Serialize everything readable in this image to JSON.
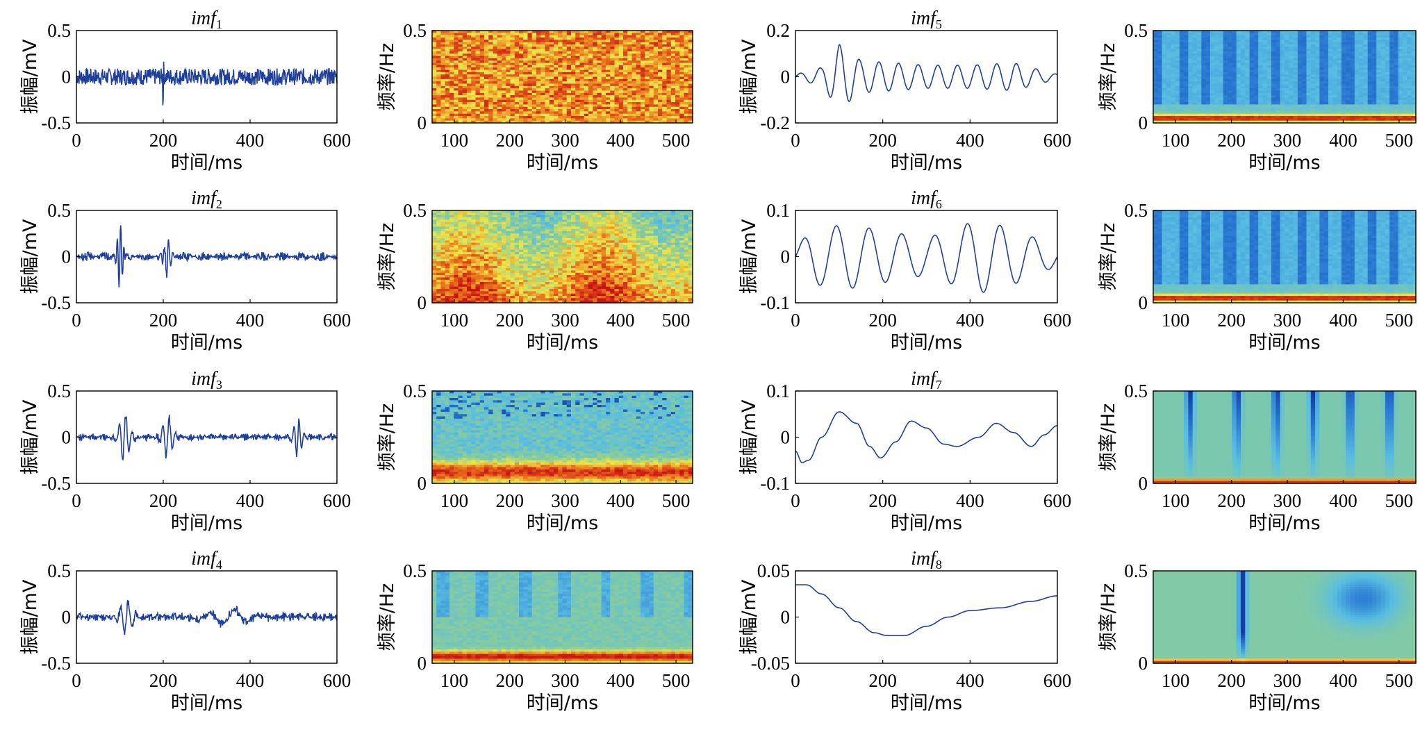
{
  "chart_data": {
    "type": "panel-grid",
    "rows": [
      {
        "imf": {
          "title_main": "imf",
          "title_sub": "1",
          "type": "line",
          "xlabel": "时间/ms",
          "ylabel": "振幅/mV",
          "xlim": [
            0,
            600
          ],
          "ylim": [
            -0.5,
            0.5
          ],
          "xticks": [
            "0",
            "200",
            "400",
            "600"
          ],
          "yticks": [
            "0.5",
            "0",
            "-0.5"
          ],
          "signal": {
            "kind": "noise",
            "amp": 0.09,
            "spike_x": 200,
            "spike_amp": 0.25
          }
        },
        "spec": {
          "type": "heatmap",
          "xlabel": "时间/ms",
          "ylabel": "频率/Hz",
          "xlim": [
            60,
            530
          ],
          "ylim": [
            0,
            0.5
          ],
          "xticks": [
            "100",
            "200",
            "300",
            "400",
            "500"
          ],
          "yticks": [
            "0.5",
            "0"
          ],
          "pattern": "broadband"
        }
      },
      {
        "imf": {
          "title_main": "imf",
          "title_sub": "2",
          "type": "line",
          "xlabel": "时间/ms",
          "ylabel": "振幅/mV",
          "xlim": [
            0,
            600
          ],
          "ylim": [
            -0.5,
            0.5
          ],
          "xticks": [
            "0",
            "200",
            "400",
            "600"
          ],
          "yticks": [
            "0.5",
            "0",
            "-0.5"
          ],
          "signal": {
            "kind": "bursts",
            "amp": 0.05,
            "freq": 45,
            "bursts": [
              {
                "x": 100,
                "amp": 0.35,
                "w": 8
              },
              {
                "x": 210,
                "amp": 0.2,
                "w": 10
              }
            ]
          }
        },
        "spec": {
          "type": "heatmap",
          "xlabel": "时间/ms",
          "ylabel": "频率/Hz",
          "xlim": [
            60,
            530
          ],
          "ylim": [
            0,
            0.5
          ],
          "xticks": [
            "100",
            "200",
            "300",
            "400",
            "500"
          ],
          "yticks": [
            "0.5",
            "0"
          ],
          "pattern": "lowmid"
        }
      },
      {
        "imf": {
          "title_main": "imf",
          "title_sub": "3",
          "type": "line",
          "xlabel": "时间/ms",
          "ylabel": "振幅/mV",
          "xlim": [
            0,
            600
          ],
          "ylim": [
            -0.5,
            0.5
          ],
          "xticks": [
            "0",
            "200",
            "400",
            "600"
          ],
          "yticks": [
            "0.5",
            "0",
            "-0.5"
          ],
          "signal": {
            "kind": "bursts",
            "amp": 0.04,
            "freq": 25,
            "bursts": [
              {
                "x": 110,
                "amp": 0.25,
                "w": 15
              },
              {
                "x": 210,
                "amp": 0.22,
                "w": 15
              },
              {
                "x": 510,
                "amp": 0.2,
                "w": 12
              }
            ]
          }
        },
        "spec": {
          "type": "heatmap",
          "xlabel": "时间/ms",
          "ylabel": "频率/Hz",
          "xlim": [
            60,
            530
          ],
          "ylim": [
            0,
            0.5
          ],
          "xticks": [
            "100",
            "200",
            "300",
            "400",
            "500"
          ],
          "yticks": [
            "0.5",
            "0"
          ],
          "pattern": "lowband"
        }
      },
      {
        "imf": {
          "title_main": "imf",
          "title_sub": "4",
          "type": "line",
          "xlabel": "时间/ms",
          "ylabel": "振幅/mV",
          "xlim": [
            0,
            600
          ],
          "ylim": [
            -0.5,
            0.5
          ],
          "xticks": [
            "0",
            "200",
            "400",
            "600"
          ],
          "yticks": [
            "0.5",
            "0",
            "-0.5"
          ],
          "signal": {
            "kind": "bursts",
            "amp": 0.05,
            "freq": 18,
            "bursts": [
              {
                "x": 115,
                "amp": 0.18,
                "w": 18
              },
              {
                "x": 350,
                "amp": 0.08,
                "w": 60
              }
            ]
          }
        },
        "spec": {
          "type": "heatmap",
          "xlabel": "时间/ms",
          "ylabel": "频率/Hz",
          "xlim": [
            60,
            530
          ],
          "ylim": [
            0,
            0.5
          ],
          "xticks": [
            "100",
            "200",
            "300",
            "400",
            "500"
          ],
          "yticks": [
            "0.5",
            "0"
          ],
          "pattern": "verybasal"
        }
      }
    ],
    "rows_right": [
      {
        "imf": {
          "title_main": "imf",
          "title_sub": "5",
          "type": "line",
          "xlabel": "时间/ms",
          "ylabel": "振幅/mV",
          "xlim": [
            0,
            600
          ],
          "ylim": [
            -0.2,
            0.2
          ],
          "xticks": [
            "0",
            "200",
            "400",
            "600"
          ],
          "yticks": [
            "0.2",
            "0",
            "-0.2"
          ],
          "signal": {
            "kind": "osc",
            "period": 45,
            "env": [
              [
                0,
                0.01
              ],
              [
                60,
                0.04
              ],
              [
                100,
                0.14
              ],
              [
                150,
                0.07
              ],
              [
                300,
                0.05
              ],
              [
                400,
                0.05
              ],
              [
                500,
                0.06
              ],
              [
                600,
                0.01
              ]
            ]
          }
        },
        "spec": {
          "type": "heatmap",
          "xlabel": "时间/ms",
          "ylabel": "频率/Hz",
          "xlim": [
            60,
            530
          ],
          "ylim": [
            0,
            0.5
          ],
          "xticks": [
            "100",
            "200",
            "300",
            "400",
            "500"
          ],
          "yticks": [
            "0.5",
            "0"
          ],
          "pattern": "basal"
        }
      },
      {
        "imf": {
          "title_main": "imf",
          "title_sub": "6",
          "type": "line",
          "xlabel": "时间/ms",
          "ylabel": "振幅/mV",
          "xlim": [
            0,
            600
          ],
          "ylim": [
            -0.1,
            0.1
          ],
          "xticks": [
            "0",
            "200",
            "400",
            "600"
          ],
          "yticks": [
            "0.1",
            "0",
            "-0.1"
          ],
          "signal": {
            "kind": "osc",
            "period": 75,
            "env": [
              [
                0,
                0.02
              ],
              [
                40,
                0.06
              ],
              [
                120,
                0.07
              ],
              [
                300,
                0.04
              ],
              [
                420,
                0.08
              ],
              [
                500,
                0.06
              ],
              [
                600,
                0.02
              ]
            ]
          }
        },
        "spec": {
          "type": "heatmap",
          "xlabel": "时间/ms",
          "ylabel": "频率/Hz",
          "xlim": [
            60,
            530
          ],
          "ylim": [
            0,
            0.5
          ],
          "xticks": [
            "100",
            "200",
            "300",
            "400",
            "500"
          ],
          "yticks": [
            "0.5",
            "0"
          ],
          "pattern": "basal"
        }
      },
      {
        "imf": {
          "title_main": "imf",
          "title_sub": "7",
          "type": "line",
          "xlabel": "时间/ms",
          "ylabel": "振幅/mV",
          "xlim": [
            0,
            600
          ],
          "ylim": [
            -0.1,
            0.1
          ],
          "xticks": [
            "0",
            "200",
            "400",
            "600"
          ],
          "yticks": [
            "0.1",
            "0",
            "-0.1"
          ],
          "signal": {
            "kind": "points",
            "pts": [
              [
                0,
                -0.03
              ],
              [
                15,
                -0.055
              ],
              [
                30,
                -0.05
              ],
              [
                60,
                0.0
              ],
              [
                100,
                0.055
              ],
              [
                140,
                0.03
              ],
              [
                170,
                -0.02
              ],
              [
                195,
                -0.045
              ],
              [
                230,
                -0.01
              ],
              [
                265,
                0.035
              ],
              [
                300,
                0.02
              ],
              [
                340,
                -0.015
              ],
              [
                370,
                -0.02
              ],
              [
                420,
                0.0
              ],
              [
                460,
                0.03
              ],
              [
                500,
                0.01
              ],
              [
                540,
                -0.02
              ],
              [
                570,
                0.005
              ],
              [
                600,
                0.025
              ]
            ]
          }
        },
        "spec": {
          "type": "heatmap",
          "xlabel": "时间/ms",
          "ylabel": "频率/Hz",
          "xlim": [
            60,
            530
          ],
          "ylim": [
            0,
            0.5
          ],
          "xticks": [
            "100",
            "200",
            "300",
            "400",
            "500"
          ],
          "yticks": [
            "0.5",
            "0"
          ],
          "pattern": "sparse"
        }
      },
      {
        "imf": {
          "title_main": "imf",
          "title_sub": "8",
          "type": "line",
          "xlabel": "时间/ms",
          "ylabel": "振幅/mV",
          "xlim": [
            0,
            600
          ],
          "ylim": [
            -0.05,
            0.05
          ],
          "xticks": [
            "0",
            "200",
            "400",
            "600"
          ],
          "yticks": [
            "0.05",
            "0",
            "-0.05"
          ],
          "signal": {
            "kind": "points",
            "pts": [
              [
                0,
                0.035
              ],
              [
                25,
                0.035
              ],
              [
                60,
                0.025
              ],
              [
                100,
                0.01
              ],
              [
                140,
                -0.005
              ],
              [
                180,
                -0.017
              ],
              [
                210,
                -0.02
              ],
              [
                250,
                -0.02
              ],
              [
                300,
                -0.01
              ],
              [
                350,
                0.0
              ],
              [
                400,
                0.007
              ],
              [
                470,
                0.01
              ],
              [
                540,
                0.017
              ],
              [
                600,
                0.023
              ]
            ]
          }
        },
        "spec": {
          "type": "heatmap",
          "xlabel": "时间/ms",
          "ylabel": "频率/Hz",
          "xlim": [
            60,
            530
          ],
          "ylim": [
            0,
            0.5
          ],
          "xticks": [
            "100",
            "200",
            "300",
            "400",
            "500"
          ],
          "yticks": [
            "0.5",
            "0"
          ],
          "pattern": "smooth"
        }
      }
    ]
  }
}
